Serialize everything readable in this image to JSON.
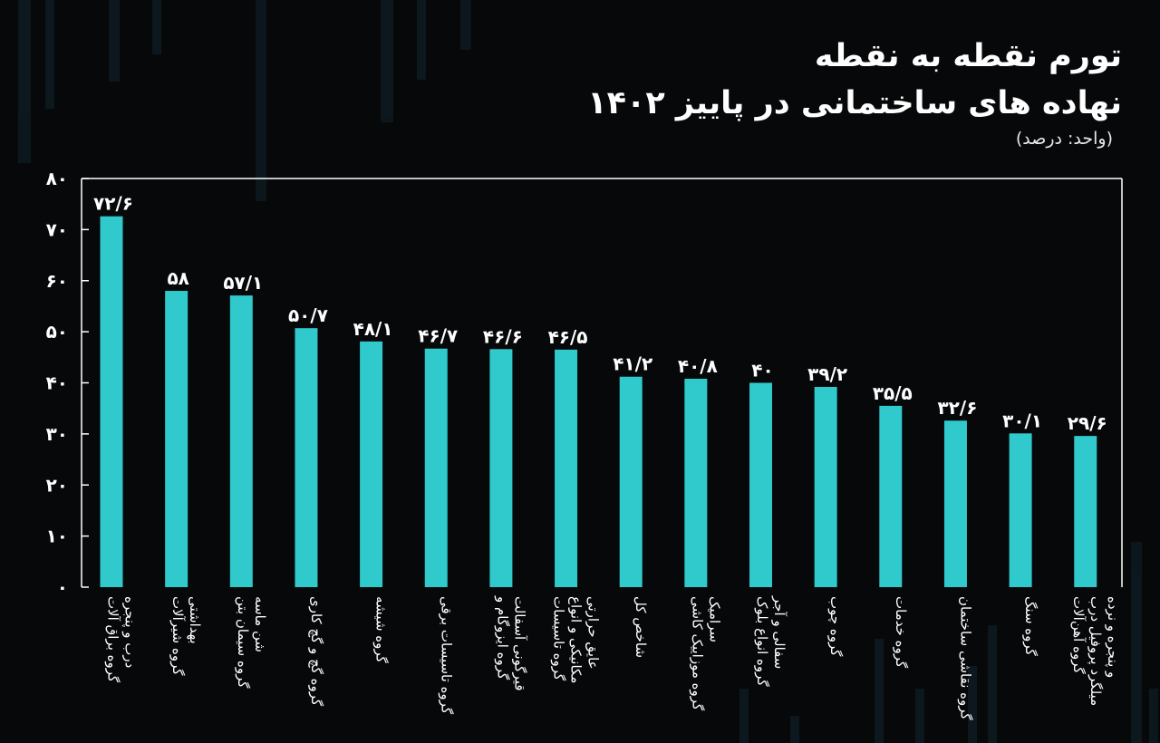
{
  "title": {
    "line1": "تورم نقطه به نقطه",
    "line2": "نهاده های ساختمانی در پاییز ۱۴۰۲",
    "unit": "(واحد: درصد)"
  },
  "colors": {
    "background": "#070809",
    "bar": "#30c9cc",
    "text": "#ffffff"
  },
  "chart_data": {
    "type": "bar",
    "title": "تورم نقطه به نقطه نهاده های ساختمانی در پاییز ۱۴۰۲",
    "ylim": [
      0,
      80
    ],
    "yticks": [
      0,
      10,
      20,
      30,
      40,
      50,
      60,
      70,
      80
    ],
    "ytick_labels": [
      "۰",
      "۱۰",
      "۲۰",
      "۳۰",
      "۴۰",
      "۵۰",
      "۶۰",
      "۷۰",
      "۸۰"
    ],
    "grid": false,
    "categories": [
      [
        "گروه براق آلات",
        "درب و پنجره"
      ],
      [
        "گروه شیرآلات",
        "بهداشتی"
      ],
      [
        "گروه سیمان بتن",
        "شن ماسه"
      ],
      [
        "گروه گچ و گچ کاری"
      ],
      [
        "گروه شیشه"
      ],
      [
        "گروه تاسیسات برقی"
      ],
      [
        "گروه ایزوگام و",
        "قیرگونی آسفالت"
      ],
      [
        "گروه تاسیسات",
        "مکانیکی و انواع",
        "عایق حرارتی"
      ],
      [
        "شاخص کل"
      ],
      [
        "گروه موزاییک کاشی",
        "سرامیک"
      ],
      [
        "گروه انواع بلوک",
        "سفالی و آجر"
      ],
      [
        "گروه چوب"
      ],
      [
        "گروه خدمات"
      ],
      [
        "گروه نقاشی ساختمان"
      ],
      [
        "گروه سنگ"
      ],
      [
        "گروه آهن‌آلات",
        "میلگرد پروفیل درب",
        "و پنجره و نرده"
      ]
    ],
    "values": [
      72.6,
      58,
      57.1,
      50.7,
      48.1,
      46.7,
      46.6,
      46.5,
      41.2,
      40.8,
      40,
      39.2,
      35.5,
      32.6,
      30.1,
      29.6
    ],
    "value_labels": [
      "۷۲/۶",
      "۵۸",
      "۵۷/۱",
      "۵۰/۷",
      "۴۸/۱",
      "۴۶/۷",
      "۴۶/۶",
      "۴۶/۵",
      "۴۱/۲",
      "۴۰/۸",
      "۴۰",
      "۳۹/۲",
      "۳۵/۵",
      "۳۲/۶",
      "۳۰/۱",
      "۲۹/۶"
    ]
  }
}
